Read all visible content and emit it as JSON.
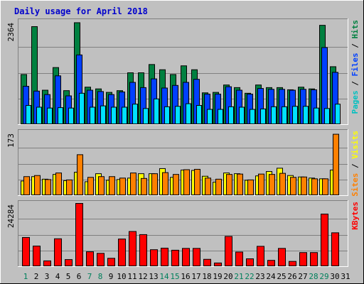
{
  "chart_data": {
    "type": "bar",
    "title": "Daily usage for April 2018",
    "categories": [
      "1",
      "2",
      "3",
      "4",
      "5",
      "6",
      "7",
      "8",
      "9",
      "10",
      "11",
      "12",
      "13",
      "14",
      "15",
      "16",
      "17",
      "18",
      "19",
      "20",
      "21",
      "22",
      "23",
      "24",
      "25",
      "26",
      "27",
      "28",
      "29",
      "30",
      "31"
    ],
    "weekend_days": [
      "1",
      "7",
      "8",
      "14",
      "15",
      "21",
      "22",
      "28",
      "29"
    ],
    "panels": [
      {
        "id": "hits",
        "max_label": "2364",
        "ymax": 2364,
        "series": [
          {
            "name": "Hits",
            "color": "#008040",
            "values": [
              1150,
              2250,
              790,
              1310,
              780,
              2340,
              860,
              820,
              740,
              780,
              1190,
              1190,
              1380,
              1260,
              1150,
              1350,
              1260,
              730,
              740,
              910,
              850,
              720,
              910,
              850,
              850,
              800,
              860,
              820,
              2280,
              1330,
              null
            ]
          },
          {
            "name": "Files",
            "color": "#0040ff",
            "values": [
              880,
              770,
              690,
              1120,
              660,
              1600,
              790,
              760,
              690,
              750,
              970,
              850,
              1050,
              840,
              900,
              970,
              1040,
              700,
              700,
              870,
              790,
              700,
              830,
              810,
              810,
              790,
              810,
              800,
              1770,
              1200,
              null
            ]
          },
          {
            "name": "Pages",
            "color": "#00e0ff",
            "values": [
              440,
              400,
              380,
              390,
              380,
              720,
              400,
              430,
              400,
              400,
              470,
              370,
              590,
              410,
              420,
              480,
              440,
              350,
              350,
              410,
              400,
              350,
              360,
              410,
              410,
              420,
              420,
              380,
              370,
              470,
              null
            ]
          }
        ],
        "legend": [
          {
            "name": "Pages",
            "color": "#00c0c0"
          },
          {
            "name": "Files",
            "color": "#0040ff"
          },
          {
            "name": "Hits",
            "color": "#008040"
          }
        ]
      },
      {
        "id": "visits",
        "max_label": "173",
        "ymax": 173,
        "series": [
          {
            "name": "Visits",
            "color": "#ffff00",
            "values": [
              40,
              52,
              45,
              58,
              41,
              64,
              38,
              60,
              42,
              44,
              48,
              60,
              60,
              74,
              50,
              70,
              69,
              53,
              37,
              62,
              60,
              42,
              54,
              66,
              75,
              55,
              51,
              48,
              46,
              70,
              null
            ]
          },
          {
            "name": "Sites",
            "color": "#ff8000",
            "values": [
              52,
              55,
              44,
              62,
              43,
              112,
              50,
              52,
              52,
              48,
              62,
              47,
              60,
              63,
              58,
              71,
              72,
              48,
              45,
              58,
              59,
              43,
              59,
              58,
              61,
              50,
              51,
              46,
              46,
              168,
              null
            ]
          }
        ],
        "legend": [
          {
            "name": "Sites",
            "color": "#ff8000"
          },
          {
            "name": "Visits",
            "color": "#ffff00"
          }
        ]
      },
      {
        "id": "kbytes",
        "max_label": "24284",
        "ymax": 24284,
        "series": [
          {
            "name": "KBytes",
            "color": "#ff0000",
            "values": [
              11200,
              7900,
              2200,
              10700,
              2700,
              24284,
              5700,
              5100,
              3200,
              10600,
              13500,
              12300,
              6500,
              7100,
              6300,
              7000,
              7000,
              2800,
              1400,
              11600,
              5600,
              3000,
              7800,
              2400,
              7000,
              2000,
              5400,
              5400,
              20200,
              13000,
              null
            ]
          }
        ],
        "legend": [
          {
            "name": "KBytes",
            "color": "#ff0000"
          }
        ]
      }
    ]
  }
}
